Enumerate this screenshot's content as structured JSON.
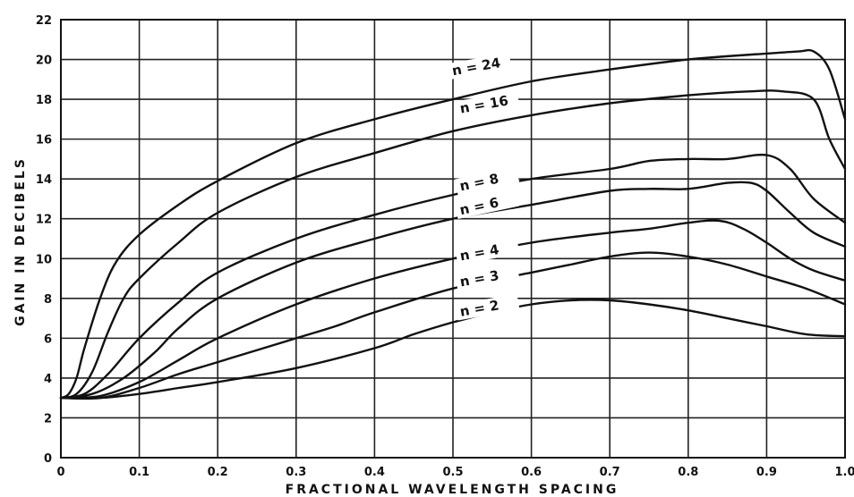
{
  "chart_data": {
    "type": "line",
    "title": "",
    "xlabel": "FRACTIONAL WAVELENGTH SPACING",
    "ylabel": "GAIN IN DECIBELS",
    "xlim": [
      0,
      1.0
    ],
    "ylim": [
      0,
      22
    ],
    "grid": true,
    "legend": "none",
    "x_ticks": [
      0,
      0.1,
      0.2,
      0.3,
      0.4,
      0.5,
      0.6,
      0.7,
      0.8,
      0.9,
      1.0
    ],
    "x_tick_labels": [
      "0",
      "0.1",
      "0.2",
      "0.3",
      "0.4",
      "0.5",
      "0.6",
      "0.7",
      "0.8",
      "0.9",
      "1.0"
    ],
    "y_ticks": [
      0,
      2,
      4,
      6,
      8,
      10,
      12,
      14,
      16,
      18,
      20,
      22
    ],
    "y_tick_labels": [
      "0",
      "2",
      "4",
      "6",
      "8",
      "10",
      "12",
      "14",
      "16",
      "18",
      "20",
      "22"
    ],
    "line_color": "#111111",
    "grid_color": "#222222",
    "series": [
      {
        "name": "n = 24",
        "label_at": [
          0.5,
          19.2
        ],
        "label_angle": -10,
        "x": [
          0,
          0.01,
          0.02,
          0.03,
          0.05,
          0.07,
          0.1,
          0.15,
          0.2,
          0.3,
          0.4,
          0.5,
          0.6,
          0.7,
          0.8,
          0.9,
          0.94,
          0.96,
          0.98,
          1.0
        ],
        "y": [
          3.0,
          3.2,
          4.0,
          5.5,
          8.0,
          9.8,
          11.2,
          12.7,
          13.9,
          15.8,
          17.0,
          18.0,
          18.9,
          19.5,
          20.0,
          20.3,
          20.4,
          20.4,
          19.5,
          17.0
        ]
      },
      {
        "name": "n = 16",
        "label_at": [
          0.51,
          17.3
        ],
        "label_angle": -10,
        "x": [
          0,
          0.02,
          0.04,
          0.06,
          0.08,
          0.1,
          0.15,
          0.2,
          0.3,
          0.4,
          0.5,
          0.6,
          0.7,
          0.8,
          0.88,
          0.92,
          0.96,
          0.98,
          1.0
        ],
        "y": [
          3.0,
          3.2,
          4.3,
          6.3,
          8.0,
          9.0,
          10.8,
          12.3,
          14.1,
          15.3,
          16.4,
          17.2,
          17.8,
          18.2,
          18.4,
          18.4,
          18.0,
          16.0,
          14.5
        ]
      },
      {
        "name": "n = 8",
        "label_at": [
          0.51,
          13.4
        ],
        "label_angle": -12,
        "x": [
          0,
          0.03,
          0.06,
          0.1,
          0.15,
          0.2,
          0.3,
          0.4,
          0.5,
          0.6,
          0.7,
          0.75,
          0.8,
          0.85,
          0.9,
          0.93,
          0.96,
          1.0
        ],
        "y": [
          3.0,
          3.2,
          4.2,
          6.0,
          7.8,
          9.3,
          11.0,
          12.2,
          13.2,
          14.0,
          14.5,
          14.9,
          15.0,
          15.0,
          15.2,
          14.5,
          13.0,
          11.8
        ]
      },
      {
        "name": "n = 6",
        "label_at": [
          0.51,
          12.2
        ],
        "label_angle": -12,
        "x": [
          0,
          0.04,
          0.08,
          0.12,
          0.15,
          0.2,
          0.3,
          0.4,
          0.5,
          0.6,
          0.7,
          0.75,
          0.8,
          0.85,
          0.88,
          0.9,
          0.93,
          0.96,
          1.0
        ],
        "y": [
          3.0,
          3.2,
          4.0,
          5.3,
          6.5,
          8.0,
          9.8,
          11.0,
          12.0,
          12.7,
          13.4,
          13.5,
          13.5,
          13.8,
          13.8,
          13.4,
          12.3,
          11.3,
          10.6
        ]
      },
      {
        "name": "n = 4",
        "label_at": [
          0.51,
          9.9
        ],
        "label_angle": -10,
        "x": [
          0,
          0.05,
          0.1,
          0.15,
          0.2,
          0.3,
          0.4,
          0.5,
          0.6,
          0.7,
          0.75,
          0.8,
          0.84,
          0.87,
          0.9,
          0.93,
          0.96,
          1.0
        ],
        "y": [
          3.0,
          3.1,
          3.8,
          4.9,
          6.0,
          7.7,
          9.0,
          10.0,
          10.8,
          11.3,
          11.5,
          11.8,
          11.9,
          11.5,
          10.8,
          10.0,
          9.4,
          8.9
        ]
      },
      {
        "name": "n = 3",
        "label_at": [
          0.51,
          8.6
        ],
        "label_angle": -10,
        "x": [
          0,
          0.05,
          0.1,
          0.15,
          0.2,
          0.3,
          0.35,
          0.4,
          0.5,
          0.6,
          0.65,
          0.7,
          0.75,
          0.8,
          0.85,
          0.9,
          0.95,
          1.0
        ],
        "y": [
          3.0,
          3.0,
          3.5,
          4.2,
          4.8,
          6.0,
          6.6,
          7.3,
          8.5,
          9.3,
          9.7,
          10.1,
          10.3,
          10.1,
          9.7,
          9.1,
          8.5,
          7.7
        ]
      },
      {
        "name": "n = 2",
        "label_at": [
          0.51,
          7.1
        ],
        "label_angle": -10,
        "x": [
          0,
          0.05,
          0.1,
          0.15,
          0.2,
          0.3,
          0.4,
          0.45,
          0.5,
          0.55,
          0.6,
          0.65,
          0.7,
          0.75,
          0.8,
          0.85,
          0.9,
          0.95,
          1.0
        ],
        "y": [
          3.0,
          3.0,
          3.2,
          3.5,
          3.8,
          4.5,
          5.5,
          6.2,
          6.8,
          7.3,
          7.7,
          7.9,
          7.9,
          7.7,
          7.4,
          7.0,
          6.6,
          6.2,
          6.1
        ]
      }
    ]
  }
}
